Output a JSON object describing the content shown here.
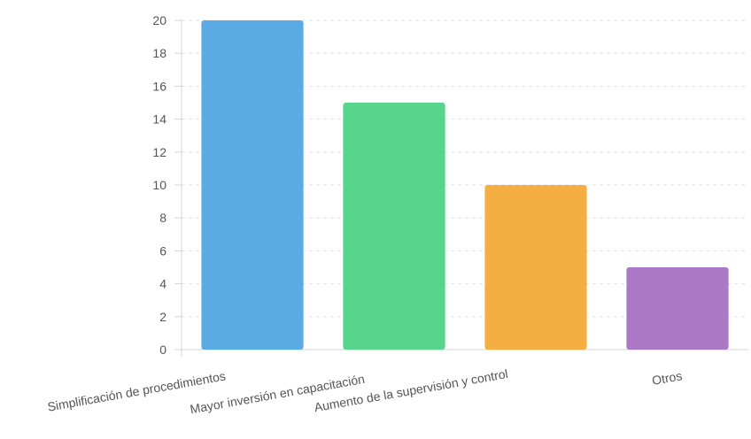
{
  "chart_data": {
    "type": "bar",
    "categories": [
      "Simplificación de procedimientos",
      "Mayor inversión en capacitación",
      "Aumento de la supervisión y control",
      "Otros"
    ],
    "values": [
      20,
      15,
      10,
      5
    ],
    "colors": [
      "#5aaae3",
      "#57d58c",
      "#f5ae42",
      "#ab78c5"
    ],
    "ylim": [
      0,
      20
    ],
    "yticks": [
      "0",
      "2",
      "4",
      "6",
      "8",
      "10",
      "12",
      "14",
      "16",
      "18",
      "20"
    ],
    "grid": true,
    "gridColor": "#e3e3e3",
    "axisColor": "#d6d6d6",
    "title": "",
    "xlabel": "",
    "ylabel": ""
  }
}
